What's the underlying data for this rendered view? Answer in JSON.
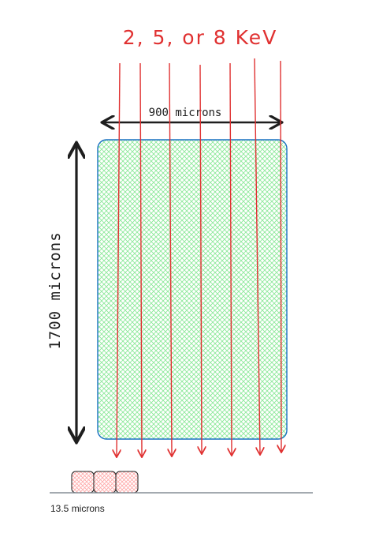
{
  "diagram": {
    "energy_label": "2, 5, or 8 KeV",
    "width_label": "900 microns",
    "height_label": "1700 microns",
    "scale_label": "13.5 microns",
    "colors": {
      "beam": "#e03131",
      "block_stroke": "#1971c2",
      "block_fill": "#b2f2bb",
      "cell_stroke": "#1e1e1e",
      "cell_fill": "#ffc9c9",
      "dimension": "#1e1e1e"
    },
    "beam_count": 7,
    "cell_count": 3
  }
}
